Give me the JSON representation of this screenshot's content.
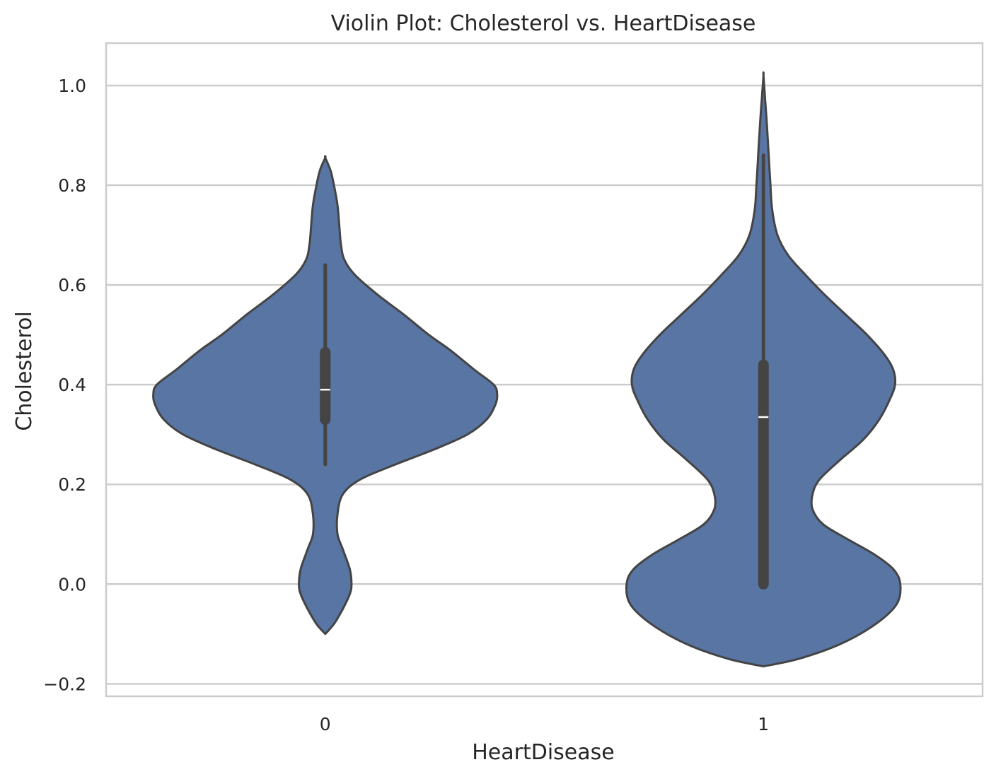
{
  "chart_data": {
    "type": "violin",
    "title": "Violin Plot: Cholesterol vs. HeartDisease",
    "xlabel": "HeartDisease",
    "ylabel": "Cholesterol",
    "categories": [
      "0",
      "1"
    ],
    "ylim": [
      -0.225,
      1.085
    ],
    "yticks": [
      -0.2,
      0.0,
      0.2,
      0.4,
      0.6,
      0.8,
      1.0
    ],
    "ytick_labels": [
      "−0.2",
      "0.0",
      "0.2",
      "0.4",
      "0.6",
      "0.8",
      "1.0"
    ],
    "grid": true,
    "colors": {
      "violin_fill": "#5875a4",
      "violin_edge": "#444444",
      "box": "#444444",
      "median": "#ffffff",
      "grid": "#cccccc",
      "frame": "#cccccc",
      "text": "#262626"
    },
    "series": [
      {
        "category": "0",
        "box": {
          "whisker_low": 0.24,
          "q1": 0.33,
          "median": 0.39,
          "q3": 0.465,
          "whisker_high": 0.64
        },
        "density": [
          [
            -0.1,
            0.0
          ],
          [
            -0.08,
            0.05
          ],
          [
            -0.05,
            0.1
          ],
          [
            -0.02,
            0.14
          ],
          [
            0.0,
            0.15
          ],
          [
            0.03,
            0.14
          ],
          [
            0.07,
            0.1
          ],
          [
            0.1,
            0.07
          ],
          [
            0.14,
            0.07
          ],
          [
            0.18,
            0.1
          ],
          [
            0.21,
            0.2
          ],
          [
            0.24,
            0.4
          ],
          [
            0.27,
            0.62
          ],
          [
            0.3,
            0.81
          ],
          [
            0.33,
            0.92
          ],
          [
            0.36,
            0.97
          ],
          [
            0.38,
            0.98
          ],
          [
            0.4,
            0.96
          ],
          [
            0.43,
            0.85
          ],
          [
            0.47,
            0.71
          ],
          [
            0.5,
            0.59
          ],
          [
            0.54,
            0.45
          ],
          [
            0.58,
            0.3
          ],
          [
            0.62,
            0.17
          ],
          [
            0.65,
            0.11
          ],
          [
            0.68,
            0.09
          ],
          [
            0.72,
            0.08
          ],
          [
            0.76,
            0.07
          ],
          [
            0.8,
            0.05
          ],
          [
            0.83,
            0.03
          ],
          [
            0.855,
            0.0
          ]
        ]
      },
      {
        "category": "1",
        "box": {
          "whisker_low": 0.0,
          "q1": 0.0,
          "median": 0.335,
          "q3": 0.44,
          "whisker_high": 0.86
        },
        "density": [
          [
            -0.165,
            0.0
          ],
          [
            -0.15,
            0.2
          ],
          [
            -0.12,
            0.44
          ],
          [
            -0.08,
            0.64
          ],
          [
            -0.04,
            0.76
          ],
          [
            0.0,
            0.78
          ],
          [
            0.03,
            0.74
          ],
          [
            0.06,
            0.63
          ],
          [
            0.09,
            0.48
          ],
          [
            0.12,
            0.34
          ],
          [
            0.15,
            0.28
          ],
          [
            0.18,
            0.28
          ],
          [
            0.21,
            0.32
          ],
          [
            0.25,
            0.44
          ],
          [
            0.29,
            0.57
          ],
          [
            0.33,
            0.66
          ],
          [
            0.37,
            0.72
          ],
          [
            0.4,
            0.75
          ],
          [
            0.43,
            0.74
          ],
          [
            0.46,
            0.69
          ],
          [
            0.5,
            0.59
          ],
          [
            0.54,
            0.47
          ],
          [
            0.58,
            0.35
          ],
          [
            0.62,
            0.24
          ],
          [
            0.66,
            0.14
          ],
          [
            0.7,
            0.08
          ],
          [
            0.75,
            0.05
          ],
          [
            0.8,
            0.04
          ],
          [
            0.86,
            0.03
          ],
          [
            0.92,
            0.02
          ],
          [
            0.97,
            0.01
          ],
          [
            1.02,
            0.0
          ]
        ]
      }
    ]
  }
}
